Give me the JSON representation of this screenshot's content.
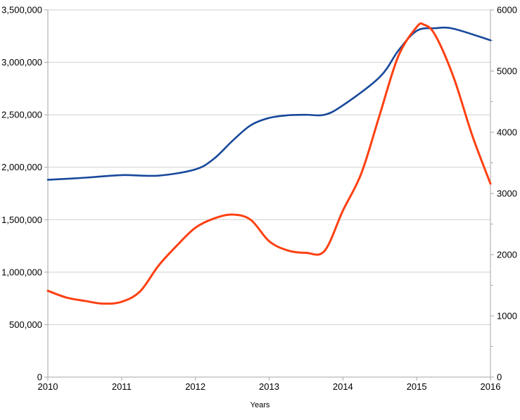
{
  "chart_data": {
    "type": "line",
    "title": "",
    "xlabel": "Years",
    "x_range": [
      2010,
      2016
    ],
    "x_tick_labels": [
      "2010",
      "2011",
      "2012",
      "2013",
      "2014",
      "2015",
      "2016"
    ],
    "left_axis": {
      "range": [
        0,
        3500000
      ],
      "tick_step": 500000,
      "tick_labels": [
        "0",
        "500,000",
        "1,000,000",
        "1,500,000",
        "2,000,000",
        "2,500,000",
        "3,000,000",
        "3,500,000"
      ]
    },
    "right_axis": {
      "range": [
        0,
        6000
      ],
      "tick_step": 1000,
      "minor_tick_step": 500,
      "tick_labels": [
        "0",
        "1000",
        "2000",
        "3000",
        "4000",
        "5000",
        "6000"
      ]
    },
    "grid": {
      "horizontal": true,
      "vertical": false,
      "color": "#cfcfcf"
    },
    "axis_color": "#a6a6a6",
    "text_color": "#000000",
    "legend": "none",
    "series": [
      {
        "name": "blue-series",
        "axis": "left",
        "color": "#17489b",
        "stroke_width": 2.6,
        "years": [
          2010,
          2011,
          2012,
          2013,
          2014,
          2015,
          2016
        ],
        "values_at_years": [
          1880000,
          1925000,
          1980000,
          2470000,
          2590000,
          3300000,
          3210000
        ],
        "points": [
          [
            2010,
            1880000
          ],
          [
            2010.5,
            1900000
          ],
          [
            2011,
            1925000
          ],
          [
            2011.5,
            1920000
          ],
          [
            2012,
            1980000
          ],
          [
            2012.25,
            2080000
          ],
          [
            2012.5,
            2250000
          ],
          [
            2012.75,
            2400000
          ],
          [
            2013,
            2470000
          ],
          [
            2013.25,
            2495000
          ],
          [
            2013.5,
            2500000
          ],
          [
            2013.75,
            2500000
          ],
          [
            2014,
            2590000
          ],
          [
            2014.5,
            2860000
          ],
          [
            2014.75,
            3110000
          ],
          [
            2015,
            3300000
          ],
          [
            2015.25,
            3325000
          ],
          [
            2015.5,
            3320000
          ],
          [
            2016,
            3210000
          ]
        ]
      },
      {
        "name": "red-series",
        "axis": "right",
        "color": "#fe4012",
        "stroke_width": 3,
        "years": [
          2010,
          2011,
          2012,
          2013,
          2014,
          2015,
          2016
        ],
        "values_at_years": [
          1410,
          1230,
          2440,
          2220,
          2720,
          5720,
          3160
        ],
        "points": [
          [
            2010,
            1410
          ],
          [
            2010.25,
            1300
          ],
          [
            2010.5,
            1245
          ],
          [
            2010.75,
            1200
          ],
          [
            2011,
            1230
          ],
          [
            2011.25,
            1400
          ],
          [
            2011.5,
            1820
          ],
          [
            2011.75,
            2150
          ],
          [
            2012,
            2440
          ],
          [
            2012.25,
            2590
          ],
          [
            2012.5,
            2655
          ],
          [
            2012.75,
            2570
          ],
          [
            2013,
            2220
          ],
          [
            2013.25,
            2070
          ],
          [
            2013.5,
            2030
          ],
          [
            2013.75,
            2060
          ],
          [
            2014,
            2720
          ],
          [
            2014.25,
            3330
          ],
          [
            2014.5,
            4290
          ],
          [
            2014.75,
            5240
          ],
          [
            2015,
            5720
          ],
          [
            2015.1,
            5757
          ],
          [
            2015.25,
            5590
          ],
          [
            2015.5,
            4900
          ],
          [
            2015.75,
            3960
          ],
          [
            2016,
            3160
          ]
        ]
      }
    ]
  }
}
